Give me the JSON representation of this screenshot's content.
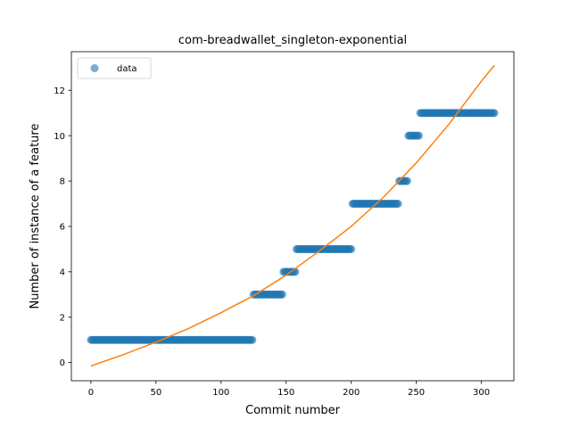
{
  "chart_data": {
    "type": "scatter",
    "title": "com-breadwallet_singleton-exponential",
    "xlabel": "Commit number",
    "ylabel": "Number of instance of a feature",
    "xlim": [
      -15,
      325
    ],
    "ylim": [
      -0.8,
      13.7
    ],
    "xticks": [
      0,
      50,
      100,
      150,
      200,
      250,
      300
    ],
    "yticks": [
      0,
      2,
      4,
      6,
      8,
      10,
      12
    ],
    "grid": false,
    "legend": {
      "placement": "top-left",
      "entries": [
        "data"
      ]
    },
    "colors": {
      "data": "#1f77b4",
      "fit": "#ff7f0e"
    },
    "series": [
      {
        "name": "data",
        "kind": "points",
        "segments": [
          {
            "x_start": 0,
            "x_end": 124,
            "y": 1
          },
          {
            "x_start": 125,
            "x_end": 147,
            "y": 3
          },
          {
            "x_start": 148,
            "x_end": 157,
            "y": 4
          },
          {
            "x_start": 158,
            "x_end": 200,
            "y": 5
          },
          {
            "x_start": 201,
            "x_end": 236,
            "y": 7
          },
          {
            "x_start": 237,
            "x_end": 243,
            "y": 8
          },
          {
            "x_start": 244,
            "x_end": 252,
            "y": 10
          },
          {
            "x_start": 253,
            "x_end": 310,
            "y": 11
          }
        ]
      },
      {
        "kind": "line",
        "x": [
          0,
          25,
          50,
          75,
          100,
          125,
          150,
          175,
          200,
          225,
          250,
          275,
          300,
          310
        ],
        "y": [
          -0.15,
          0.35,
          0.9,
          1.5,
          2.2,
          2.95,
          3.85,
          4.9,
          6.0,
          7.3,
          8.8,
          10.5,
          12.4,
          13.1
        ]
      }
    ]
  }
}
